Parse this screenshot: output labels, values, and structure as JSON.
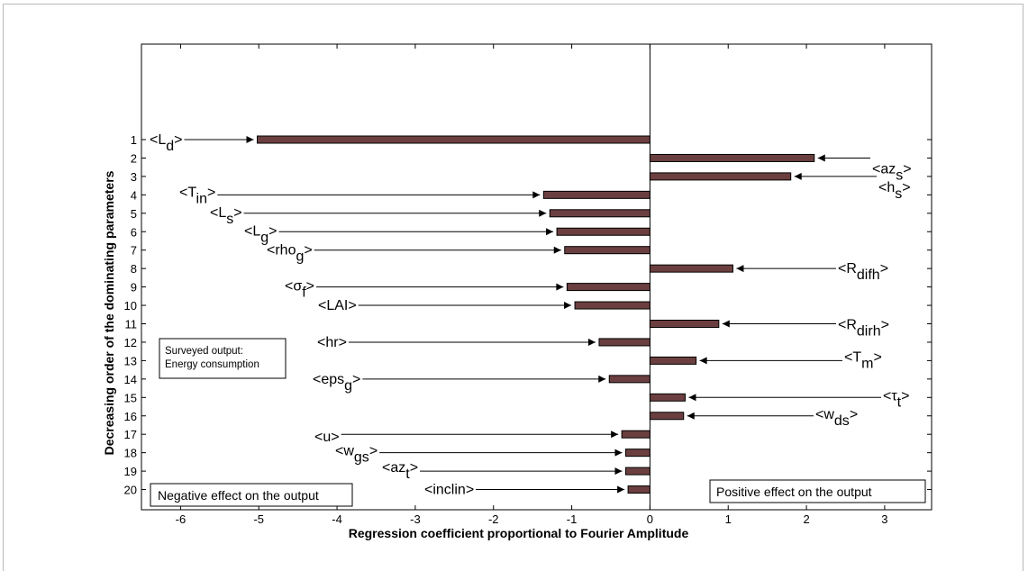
{
  "chart_data": {
    "type": "bar",
    "orientation": "horizontal",
    "xlabel": "Regression coefficient proportional to Fourier Amplitude",
    "ylabel": "Decreasing order of the dominating parameters",
    "xlim": [
      -6.5,
      3.6
    ],
    "ylim": [
      0,
      20.8
    ],
    "x_ticks": [
      -6,
      -5,
      -4,
      -3,
      -2,
      -1,
      0,
      1,
      2,
      3
    ],
    "y_ticks": [
      1,
      2,
      3,
      4,
      5,
      6,
      7,
      8,
      9,
      10,
      11,
      12,
      13,
      14,
      15,
      16,
      17,
      18,
      19,
      20
    ],
    "bar_color": "#6b3f3f",
    "bars": [
      {
        "rank": 1,
        "value": -5.02,
        "label": "L",
        "sub": "d"
      },
      {
        "rank": 2,
        "value": 2.1,
        "label": "az",
        "sub": "s"
      },
      {
        "rank": 3,
        "value": 1.8,
        "label": "h",
        "sub": "s"
      },
      {
        "rank": 4,
        "value": -1.36,
        "label": "T",
        "sub": "in"
      },
      {
        "rank": 5,
        "value": -1.28,
        "label": "L",
        "sub": "s"
      },
      {
        "rank": 6,
        "value": -1.19,
        "label": "L",
        "sub": "g"
      },
      {
        "rank": 7,
        "value": -1.09,
        "label": "rho",
        "sub": "g"
      },
      {
        "rank": 8,
        "value": 1.06,
        "label": "R",
        "sub": "difh"
      },
      {
        "rank": 9,
        "value": -1.06,
        "label": "σ",
        "sub": "f"
      },
      {
        "rank": 10,
        "value": -0.96,
        "label": "LAI",
        "sub": ""
      },
      {
        "rank": 11,
        "value": 0.88,
        "label": "R",
        "sub": "dirh"
      },
      {
        "rank": 12,
        "value": -0.65,
        "label": "hr",
        "sub": ""
      },
      {
        "rank": 13,
        "value": 0.59,
        "label": "T",
        "sub": "m"
      },
      {
        "rank": 14,
        "value": -0.52,
        "label": "eps",
        "sub": "g"
      },
      {
        "rank": 15,
        "value": 0.45,
        "label": "τ",
        "sub": "t"
      },
      {
        "rank": 16,
        "value": 0.43,
        "label": "w",
        "sub": "ds"
      },
      {
        "rank": 17,
        "value": -0.36,
        "label": "u",
        "sub": ""
      },
      {
        "rank": 18,
        "value": -0.31,
        "label": "w",
        "sub": "gs"
      },
      {
        "rank": 19,
        "value": -0.31,
        "label": "az",
        "sub": "t"
      },
      {
        "rank": 20,
        "value": -0.28,
        "label": "inclin",
        "sub": ""
      }
    ],
    "annotations": {
      "output_box": [
        "Surveyed  output:",
        "Energy consumption"
      ],
      "negative_box": "Negative effect on the output",
      "positive_box": "Positive effect on the output"
    }
  }
}
